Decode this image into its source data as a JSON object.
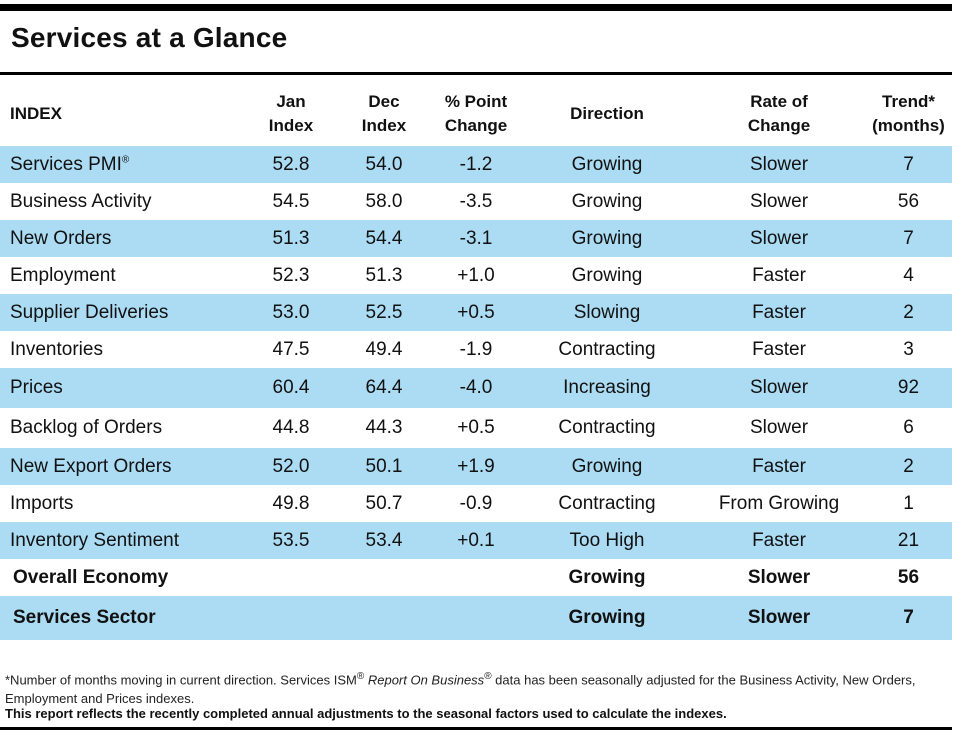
{
  "title": "Services at a Glance",
  "headers": {
    "index": "INDEX",
    "jan_1": "Jan",
    "jan_2": "Index",
    "dec_1": "Dec",
    "dec_2": "Index",
    "pct_1": "% Point",
    "pct_2": "Change",
    "direction": "Direction",
    "rate_1": "Rate of",
    "rate_2": "Change",
    "trend_1": "Trend*",
    "trend_2": "(months)"
  },
  "rows": [
    {
      "index": "Services PMI",
      "sup": "®",
      "jan": "52.8",
      "dec": "54.0",
      "change": "-1.2",
      "direction": "Growing",
      "rate": "Slower",
      "trend": "7"
    },
    {
      "index": "Business Activity",
      "jan": "54.5",
      "dec": "58.0",
      "change": "-3.5",
      "direction": "Growing",
      "rate": "Slower",
      "trend": "56"
    },
    {
      "index": "New Orders",
      "jan": "51.3",
      "dec": "54.4",
      "change": "-3.1",
      "direction": "Growing",
      "rate": "Slower",
      "trend": "7"
    },
    {
      "index": "Employment",
      "jan": "52.3",
      "dec": "51.3",
      "change": "+1.0",
      "direction": "Growing",
      "rate": "Faster",
      "trend": "4"
    },
    {
      "index": "Supplier Deliveries",
      "jan": "53.0",
      "dec": "52.5",
      "change": "+0.5",
      "direction": "Slowing",
      "rate": "Faster",
      "trend": "2"
    },
    {
      "index": "Inventories",
      "jan": "47.5",
      "dec": "49.4",
      "change": "-1.9",
      "direction": "Contracting",
      "rate": "Faster",
      "trend": "3"
    },
    {
      "index": "Prices",
      "jan": "60.4",
      "dec": "64.4",
      "change": "-4.0",
      "direction": "Increasing",
      "rate": "Slower",
      "trend": "92"
    },
    {
      "index": "Backlog of Orders",
      "jan": "44.8",
      "dec": "44.3",
      "change": "+0.5",
      "direction": "Contracting",
      "rate": "Slower",
      "trend": "6"
    },
    {
      "index": "New Export Orders",
      "jan": "52.0",
      "dec": "50.1",
      "change": "+1.9",
      "direction": "Growing",
      "rate": "Faster",
      "trend": "2"
    },
    {
      "index": "Imports",
      "jan": "49.8",
      "dec": "50.7",
      "change": "-0.9",
      "direction": "Contracting",
      "rate": "From Growing",
      "trend": "1"
    },
    {
      "index": "Inventory Sentiment",
      "jan": "53.5",
      "dec": "53.4",
      "change": "+0.1",
      "direction": "Too High",
      "rate": "Faster",
      "trend": "21"
    }
  ],
  "summary": [
    {
      "index": "Overall Economy",
      "direction": "Growing",
      "rate": "Slower",
      "trend": "56"
    },
    {
      "index": "Services Sector",
      "direction": "Growing",
      "rate": "Slower",
      "trend": "7"
    }
  ],
  "footnote": {
    "part1": "*Number of months moving in current direction. Services ISM",
    "reg1": "®",
    "italic": " Report On Business",
    "reg2": "®",
    "part2": " data has been seasonally adjusted for the Business Activity, New Orders, Employment and Prices indexes.",
    "bold_note": "This report reflects the recently completed annual adjustments to the seasonal factors used to calculate the indexes."
  }
}
